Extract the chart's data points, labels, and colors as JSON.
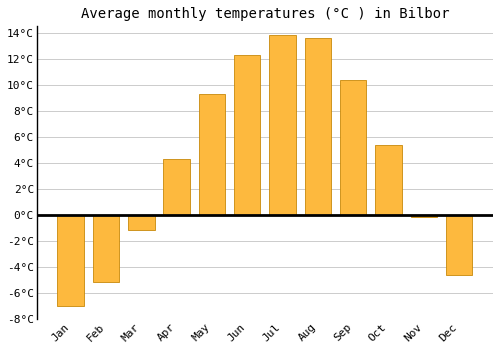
{
  "title": "Average monthly temperatures (°C ) in Bilbor",
  "months": [
    "Jan",
    "Feb",
    "Mar",
    "Apr",
    "May",
    "Jun",
    "Jul",
    "Aug",
    "Sep",
    "Oct",
    "Nov",
    "Dec"
  ],
  "values": [
    -7.0,
    -5.2,
    -1.2,
    4.3,
    9.3,
    12.3,
    13.8,
    13.6,
    10.4,
    5.4,
    -0.2,
    -4.6
  ],
  "bar_color": "#FDB93E",
  "bar_edge_color": "#C8890A",
  "ylim": [
    -8,
    14.5
  ],
  "ytick_vals": [
    -8,
    -6,
    -4,
    -2,
    0,
    2,
    4,
    6,
    8,
    10,
    12,
    14
  ],
  "ytick_labels": [
    "-8°C",
    "-6°C",
    "-4°C",
    "-2°C",
    "0°C",
    "2°C",
    "4°C",
    "6°C",
    "8°C",
    "10°C",
    "12°C",
    "14°C"
  ],
  "background_color": "#FFFFFF",
  "grid_color": "#CCCCCC",
  "title_fontsize": 10,
  "tick_fontsize": 8,
  "zero_line_color": "#000000"
}
